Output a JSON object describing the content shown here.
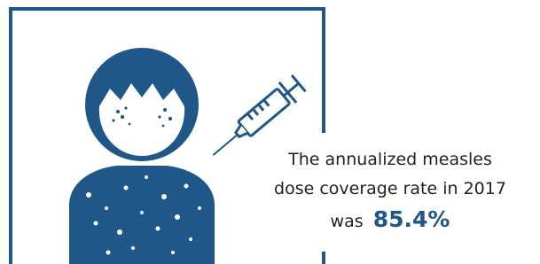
{
  "caption": {
    "line1": "The annualized measles",
    "line2": "dose coverage rate in 2017",
    "line3": "was",
    "highlight": "85.4%"
  }
}
